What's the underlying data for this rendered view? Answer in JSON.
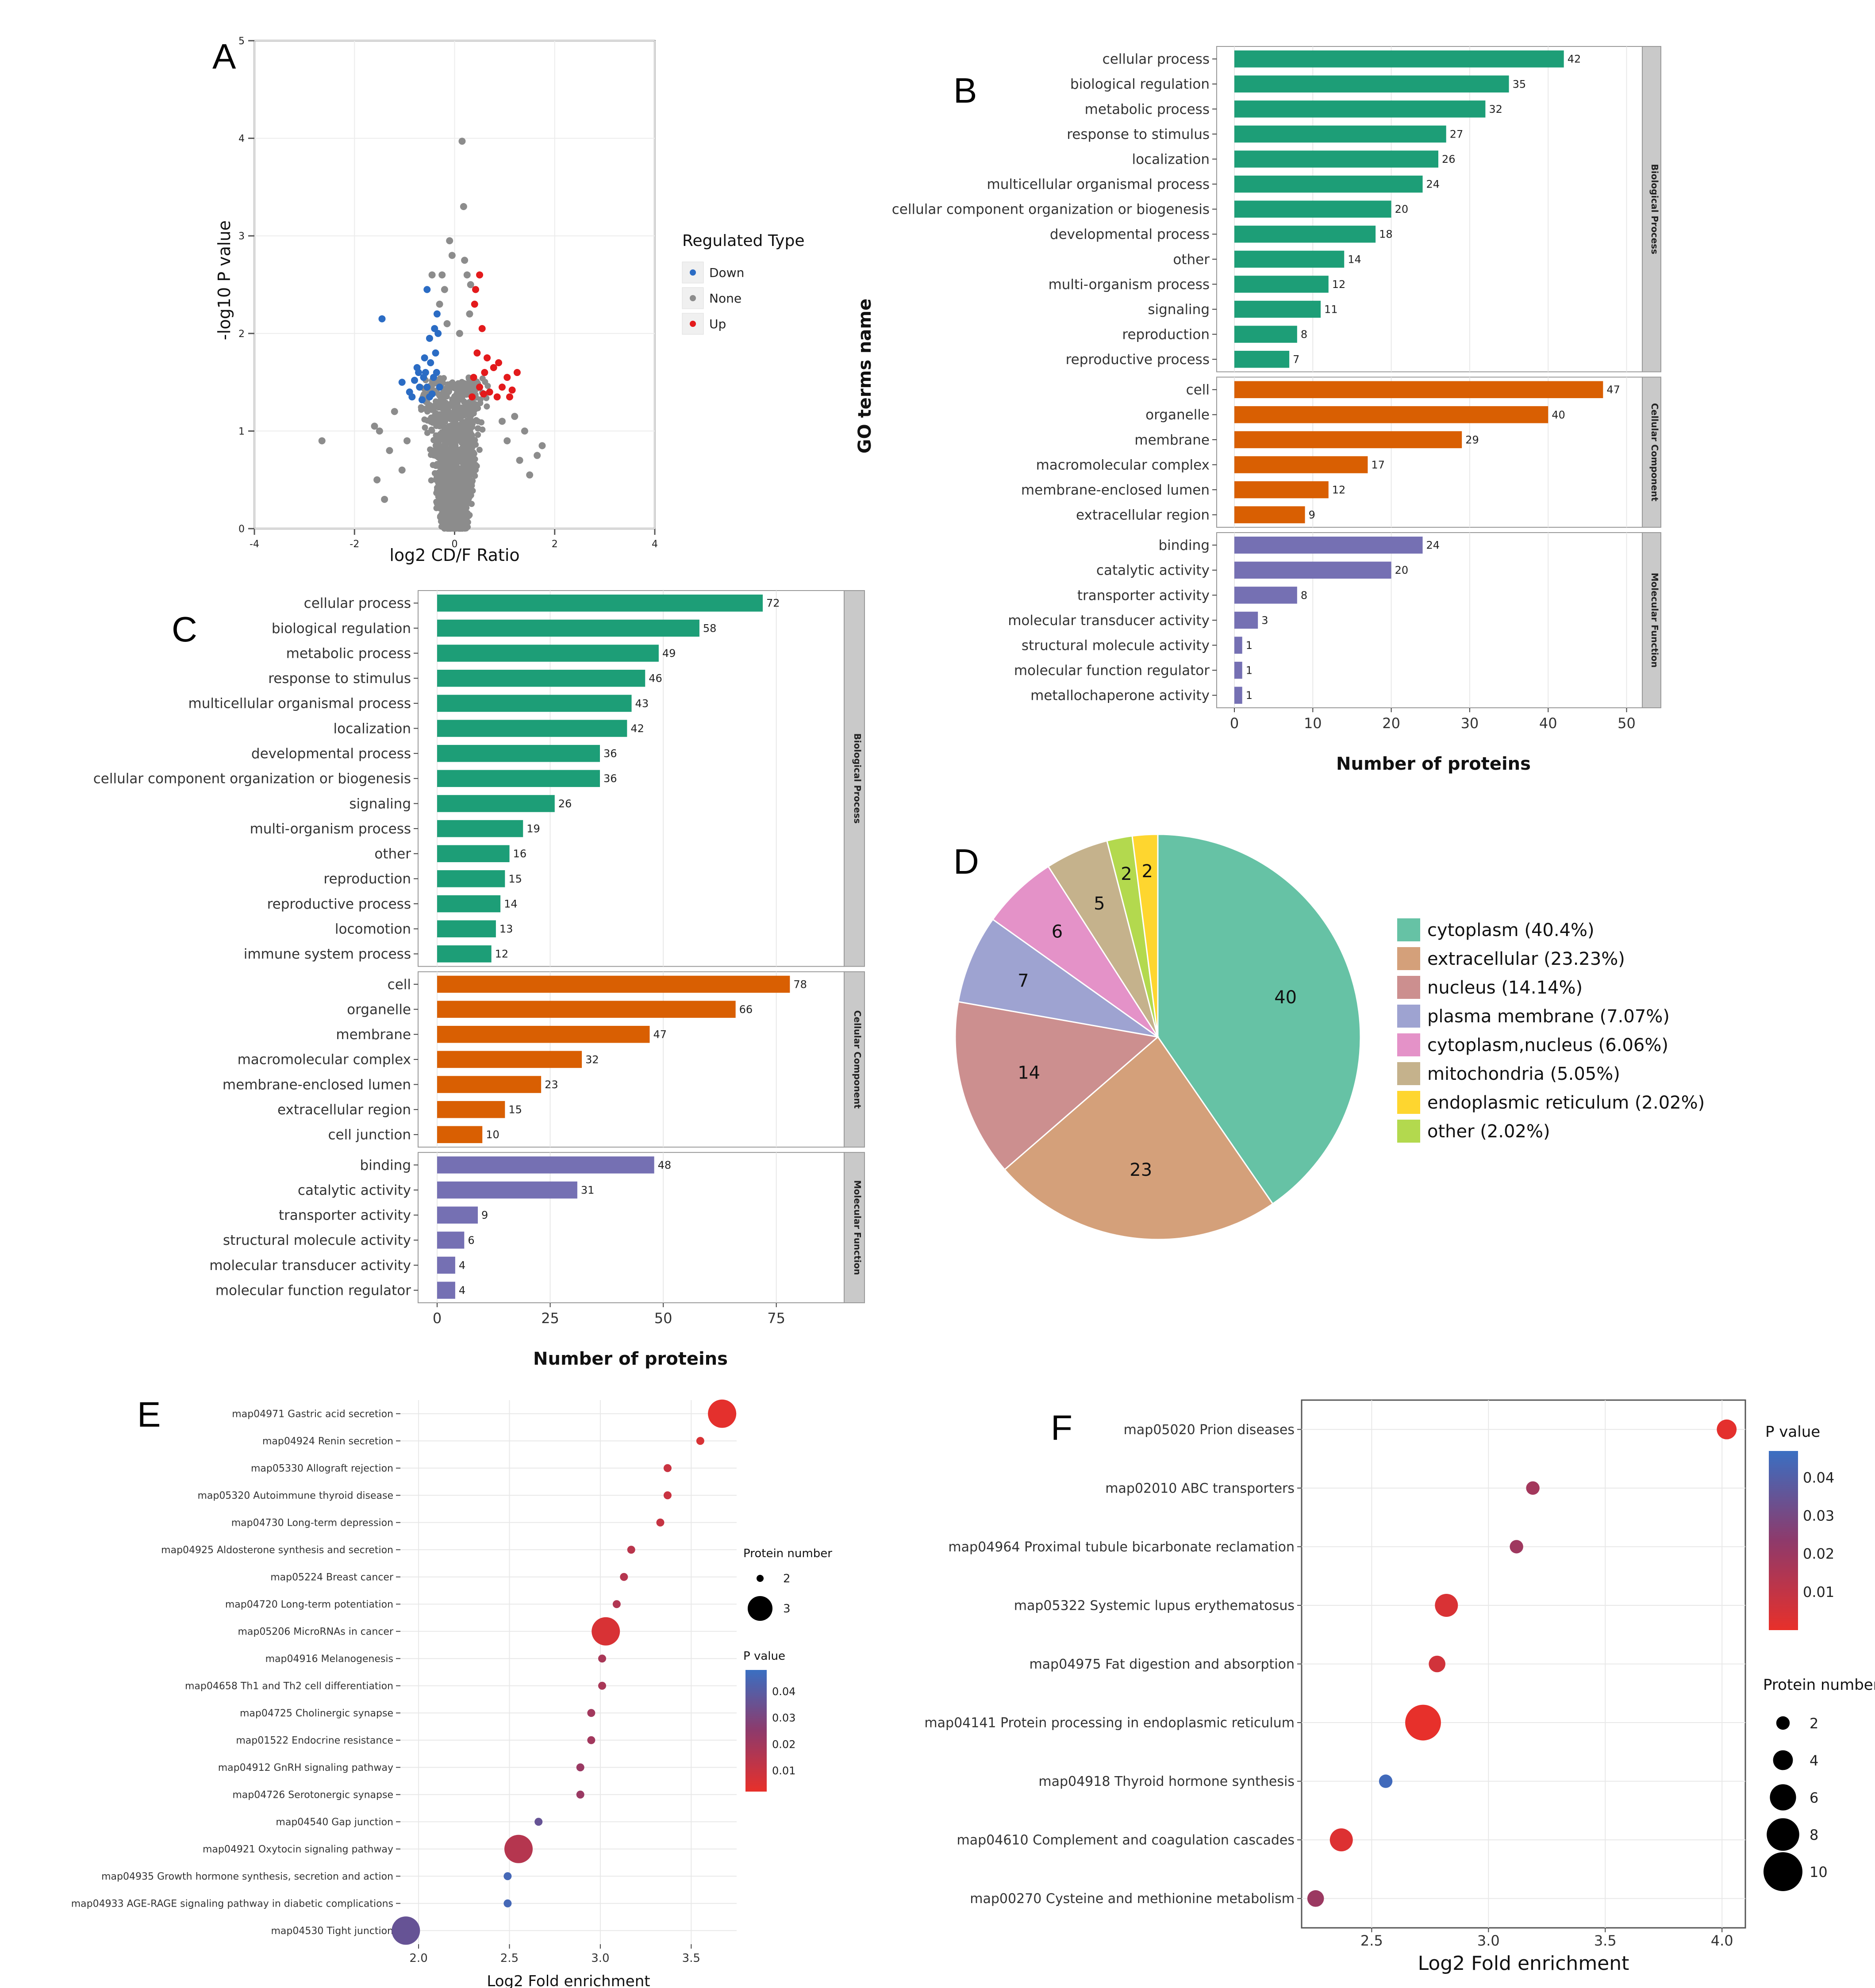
{
  "colors": {
    "bp": "#1d9e77",
    "cc": "#d95f02",
    "mf": "#7570b3",
    "down": "#2b6cc4",
    "none": "#8c8c8c",
    "up": "#e31a1c",
    "pcold": "#e8302a",
    "pmid": "#8e3a6b",
    "phot": "#3a6fc2",
    "grid": "#e8e8e8",
    "strip": "#c9c9c9"
  },
  "panels": {
    "A": "A",
    "B": "B",
    "C": "C",
    "D": "D",
    "E": "E",
    "F": "F"
  },
  "chart_data": [
    {
      "id": "A",
      "type": "scatter",
      "xlabel": "log2 CD/F Ratio",
      "ylabel": "-log10 P value",
      "xlim": [
        -4,
        4
      ],
      "ylim": [
        0,
        5
      ],
      "xticks": [
        "-4",
        "-2",
        "0",
        "2",
        "4"
      ],
      "yticks": [
        "0",
        "1",
        "2",
        "3",
        "4",
        "5"
      ],
      "legend": {
        "title": "Regulated Type",
        "items": [
          {
            "name": "Down",
            "color": "down"
          },
          {
            "name": "None",
            "color": "none"
          },
          {
            "name": "Up",
            "color": "up"
          }
        ]
      },
      "points": {
        "down": [
          [
            -0.75,
            1.65
          ],
          [
            -0.62,
            1.55
          ],
          [
            -0.55,
            1.45
          ],
          [
            -0.9,
            1.4
          ],
          [
            -0.7,
            1.45
          ],
          [
            -0.48,
            1.7
          ],
          [
            -0.6,
            1.75
          ],
          [
            -0.4,
            2.05
          ],
          [
            -0.35,
            2.2
          ],
          [
            -1.45,
            2.15
          ],
          [
            -0.85,
            1.35
          ],
          [
            -0.65,
            1.32
          ],
          [
            -0.5,
            1.35
          ],
          [
            -0.42,
            1.55
          ],
          [
            -0.38,
            1.8
          ],
          [
            -0.55,
            2.45
          ],
          [
            -0.3,
            1.45
          ],
          [
            -0.72,
            1.6
          ],
          [
            -1.05,
            1.5
          ],
          [
            -0.45,
            1.38
          ],
          [
            -0.36,
            1.6
          ],
          [
            -0.58,
            1.6
          ],
          [
            -0.8,
            1.52
          ],
          [
            -0.33,
            2.0
          ],
          [
            -0.5,
            1.95
          ]
        ],
        "up": [
          [
            0.4,
            2.3
          ],
          [
            0.55,
            2.05
          ],
          [
            0.45,
            1.8
          ],
          [
            0.6,
            1.6
          ],
          [
            0.7,
            1.4
          ],
          [
            0.85,
            1.35
          ],
          [
            1.05,
            1.55
          ],
          [
            0.95,
            1.45
          ],
          [
            1.25,
            1.6
          ],
          [
            0.5,
            1.45
          ],
          [
            0.38,
            1.55
          ],
          [
            0.65,
            1.75
          ],
          [
            0.42,
            2.45
          ],
          [
            1.1,
            1.35
          ],
          [
            0.78,
            1.65
          ],
          [
            0.35,
            1.35
          ],
          [
            0.5,
            2.6
          ],
          [
            0.58,
            1.38
          ],
          [
            0.88,
            1.7
          ],
          [
            1.15,
            1.42
          ]
        ],
        "none": [
          [
            -2.65,
            0.9
          ],
          [
            -1.5,
            1.0
          ],
          [
            -1.2,
            1.2
          ],
          [
            -1.3,
            0.8
          ],
          [
            -1.55,
            0.5
          ],
          [
            -1.4,
            0.3
          ],
          [
            -1.05,
            0.6
          ],
          [
            -0.95,
            0.9
          ],
          [
            -1.6,
            1.05
          ],
          [
            0.15,
            3.97
          ],
          [
            0.18,
            3.3
          ],
          [
            -0.1,
            2.95
          ],
          [
            -0.05,
            2.8
          ],
          [
            0.2,
            2.75
          ],
          [
            0.32,
            2.5
          ],
          [
            -0.2,
            2.45
          ],
          [
            -0.25,
            2.6
          ],
          [
            1.65,
            0.75
          ],
          [
            1.4,
            1.0
          ],
          [
            1.5,
            0.55
          ],
          [
            1.2,
            1.15
          ],
          [
            1.05,
            0.9
          ],
          [
            1.75,
            0.85
          ],
          [
            1.3,
            0.7
          ],
          [
            0.95,
            1.1
          ],
          [
            0.3,
            2.2
          ],
          [
            -0.3,
            2.3
          ],
          [
            -0.15,
            2.1
          ],
          [
            0.1,
            2.0
          ],
          [
            0.25,
            2.6
          ],
          [
            -0.45,
            2.6
          ]
        ]
      }
    },
    {
      "id": "B",
      "type": "bar",
      "yaxis_title": "GO terms name",
      "xlabel": "Number of proteins",
      "xlim": [
        0,
        52
      ],
      "xticks": [
        "0",
        "10",
        "20",
        "30",
        "40",
        "50"
      ],
      "groups": [
        {
          "name": "Biological Process",
          "color": "bp",
          "categories": [
            "cellular process",
            "biological regulation",
            "metabolic process",
            "response to stimulus",
            "localization",
            "multicellular organismal process",
            "cellular component organization or biogenesis",
            "developmental process",
            "other",
            "multi-organism process",
            "signaling",
            "reproduction",
            "reproductive process"
          ],
          "values": [
            42,
            35,
            32,
            27,
            26,
            24,
            20,
            18,
            14,
            12,
            11,
            8,
            7
          ]
        },
        {
          "name": "Cellular Component",
          "color": "cc",
          "categories": [
            "cell",
            "organelle",
            "membrane",
            "macromolecular complex",
            "membrane-enclosed lumen",
            "extracellular region"
          ],
          "values": [
            47,
            40,
            29,
            17,
            12,
            9
          ]
        },
        {
          "name": "Molecular Function",
          "color": "mf",
          "categories": [
            "binding",
            "catalytic activity",
            "transporter activity",
            "molecular transducer activity",
            "structural molecule activity",
            "molecular function regulator",
            "metallochaperone activity"
          ],
          "values": [
            24,
            20,
            8,
            3,
            1,
            1,
            1
          ]
        }
      ]
    },
    {
      "id": "C",
      "type": "bar",
      "xlabel": "Number of proteins",
      "xlim": [
        0,
        90
      ],
      "xticks": [
        "0",
        "25",
        "50",
        "75"
      ],
      "groups": [
        {
          "name": "Biological Process",
          "color": "bp",
          "categories": [
            "cellular process",
            "biological regulation",
            "metabolic process",
            "response to stimulus",
            "multicellular organismal process",
            "localization",
            "developmental process",
            "cellular component organization or biogenesis",
            "signaling",
            "multi-organism process",
            "other",
            "reproduction",
            "reproductive process",
            "locomotion",
            "immune system process"
          ],
          "values": [
            72,
            58,
            49,
            46,
            43,
            42,
            36,
            36,
            26,
            19,
            16,
            15,
            14,
            13,
            12
          ]
        },
        {
          "name": "Cellular Component",
          "color": "cc",
          "categories": [
            "cell",
            "organelle",
            "membrane",
            "macromolecular complex",
            "membrane-enclosed lumen",
            "extracellular region",
            "cell junction"
          ],
          "values": [
            78,
            66,
            47,
            32,
            23,
            15,
            10
          ]
        },
        {
          "name": "Molecular Function",
          "color": "mf",
          "categories": [
            "binding",
            "catalytic activity",
            "transporter activity",
            "structural molecule activity",
            "molecular transducer activity",
            "molecular function regulator"
          ],
          "values": [
            48,
            31,
            9,
            6,
            4,
            4
          ]
        }
      ]
    },
    {
      "id": "D",
      "type": "pie",
      "slices": [
        {
          "value": 40,
          "label": "40",
          "legend": "cytoplasm (40.4%)",
          "color": "#66c2a5"
        },
        {
          "value": 23,
          "label": "23",
          "legend": "extracellular (23.23%)",
          "color": "#d4a07a"
        },
        {
          "value": 14,
          "label": "14",
          "legend": "nucleus (14.14%)",
          "color": "#cc8f8f"
        },
        {
          "value": 7,
          "label": "7",
          "legend": "plasma membrane (7.07%)",
          "color": "#9ea3d1"
        },
        {
          "value": 6,
          "label": "6",
          "legend": "cytoplasm,nucleus (6.06%)",
          "color": "#e492c8"
        },
        {
          "value": 5,
          "label": "5",
          "legend": "mitochondria (5.05%)",
          "color": "#c5b28c"
        },
        {
          "value": 2,
          "label": "2",
          "legend": "other (2.02%)",
          "color": "#b3d94e"
        },
        {
          "value": 2,
          "label": "2",
          "legend": "endoplasmic reticulum (2.02%)",
          "color": "#fed62f"
        }
      ],
      "legend_order": [
        0,
        1,
        2,
        3,
        4,
        5,
        7,
        6
      ]
    },
    {
      "id": "E",
      "type": "scatter",
      "xlabel": "Log2 Fold enrichment",
      "xlim": [
        1.9,
        3.75
      ],
      "xticks": [
        "2.0",
        "2.5",
        "3.0",
        "3.5"
      ],
      "size_legend": {
        "title": "Protein number",
        "items": [
          {
            "label": "2",
            "n": 2
          },
          {
            "label": "3",
            "n": 3
          }
        ]
      },
      "color_legend": {
        "title": "P value",
        "ticks": [
          "0.04",
          "0.03",
          "0.02",
          "0.01"
        ],
        "range": [
          0.002,
          0.048
        ]
      },
      "points": [
        {
          "term": "map04971 Gastric acid secretion",
          "x": 3.67,
          "n": 3,
          "p": 0.003
        },
        {
          "term": "map04924 Renin secretion",
          "x": 3.55,
          "n": 2,
          "p": 0.006
        },
        {
          "term": "map05330 Allograft rejection",
          "x": 3.37,
          "n": 2,
          "p": 0.01
        },
        {
          "term": "map05320 Autoimmune thyroid disease",
          "x": 3.37,
          "n": 2,
          "p": 0.01
        },
        {
          "term": "map04730 Long-term depression",
          "x": 3.33,
          "n": 2,
          "p": 0.011
        },
        {
          "term": "map04925 Aldosterone synthesis and secretion",
          "x": 3.17,
          "n": 2,
          "p": 0.014
        },
        {
          "term": "map05224 Breast cancer",
          "x": 3.13,
          "n": 2,
          "p": 0.015
        },
        {
          "term": "map04720 Long-term potentiation",
          "x": 3.09,
          "n": 2,
          "p": 0.016
        },
        {
          "term": "map05206 MicroRNAs in cancer",
          "x": 3.03,
          "n": 3,
          "p": 0.006
        },
        {
          "term": "map04916 Melanogenesis",
          "x": 3.01,
          "n": 2,
          "p": 0.018
        },
        {
          "term": "map04658 Th1 and Th2 cell differentiation",
          "x": 3.01,
          "n": 2,
          "p": 0.018
        },
        {
          "term": "map04725 Cholinergic synapse",
          "x": 2.95,
          "n": 2,
          "p": 0.02
        },
        {
          "term": "map01522 Endocrine resistance",
          "x": 2.95,
          "n": 2,
          "p": 0.02
        },
        {
          "term": "map04912 GnRH signaling pathway",
          "x": 2.89,
          "n": 2,
          "p": 0.022
        },
        {
          "term": "map04726 Serotonergic synapse",
          "x": 2.89,
          "n": 2,
          "p": 0.022
        },
        {
          "term": "map04540 Gap junction",
          "x": 2.66,
          "n": 2,
          "p": 0.036
        },
        {
          "term": "map04921 Oxytocin signaling pathway",
          "x": 2.55,
          "n": 3,
          "p": 0.015
        },
        {
          "term": "map04935 Growth hormone synthesis, secretion and action",
          "x": 2.49,
          "n": 2,
          "p": 0.045
        },
        {
          "term": "map04933 AGE-RAGE signaling pathway in diabetic complications",
          "x": 2.49,
          "n": 2,
          "p": 0.045
        },
        {
          "term": "map04530 Tight junction",
          "x": 1.93,
          "n": 3,
          "p": 0.036
        }
      ]
    },
    {
      "id": "F",
      "type": "scatter",
      "xlabel": "Log2 Fold enrichment",
      "xlim": [
        2.2,
        4.1
      ],
      "xticks": [
        "2.5",
        "3.0",
        "3.5",
        "4.0"
      ],
      "size_legend": {
        "title": "Protein number",
        "items": [
          {
            "label": "2",
            "n": 2
          },
          {
            "label": "4",
            "n": 4
          },
          {
            "label": "6",
            "n": 6
          },
          {
            "label": "8",
            "n": 8
          },
          {
            "label": "10",
            "n": 10
          }
        ]
      },
      "color_legend": {
        "title": "P value",
        "ticks": [
          "0.04",
          "0.03",
          "0.02",
          "0.01"
        ],
        "range": [
          0.0,
          0.047
        ]
      },
      "points": [
        {
          "term": "map05020 Prion diseases",
          "x": 4.02,
          "n": 4,
          "p": 0.001
        },
        {
          "term": "map02010 ABC transporters",
          "x": 3.19,
          "n": 2,
          "p": 0.018
        },
        {
          "term": "map04964 Proximal tubule bicarbonate reclamation",
          "x": 3.12,
          "n": 2,
          "p": 0.019
        },
        {
          "term": "map05322 Systemic lupus erythematosus",
          "x": 2.82,
          "n": 5,
          "p": 0.004
        },
        {
          "term": "map04975 Fat digestion and absorption",
          "x": 2.78,
          "n": 3,
          "p": 0.006
        },
        {
          "term": "map04141 Protein processing in endoplasmic reticulum",
          "x": 2.72,
          "n": 9,
          "p": 0.0002
        },
        {
          "term": "map04918 Thyroid hormone synthesis",
          "x": 2.56,
          "n": 2,
          "p": 0.045
        },
        {
          "term": "map04610 Complement and coagulation cascades",
          "x": 2.37,
          "n": 5,
          "p": 0.003
        },
        {
          "term": "map00270 Cysteine and methionine metabolism",
          "x": 2.26,
          "n": 3,
          "p": 0.02
        }
      ]
    }
  ]
}
